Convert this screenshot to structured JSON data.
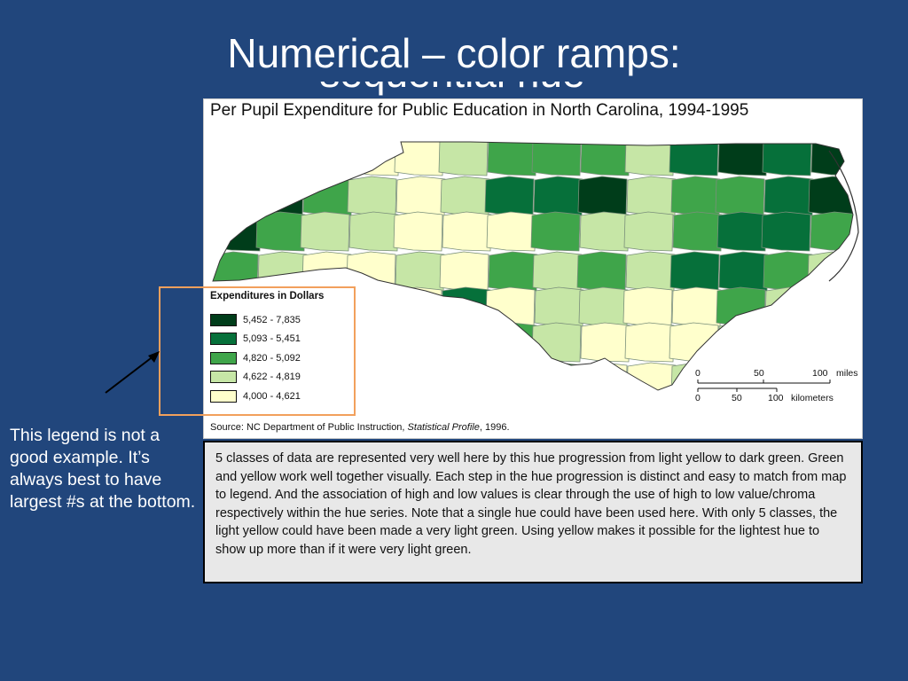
{
  "slide": {
    "title": "Numerical – color ramps:",
    "title_second_line": "sequential hue progression"
  },
  "map": {
    "title": "Per Pupil Expenditure for Public Education in North Carolina, 1994-1995",
    "legend": {
      "title": "Expenditures in Dollars",
      "classes": [
        {
          "label": "5,452 - 7,835",
          "color": "#003d1a"
        },
        {
          "label": "5,093 - 5,451",
          "color": "#06703a"
        },
        {
          "label": "4,820 - 5,092",
          "color": "#3fa54a"
        },
        {
          "label": "4,622 - 4,819",
          "color": "#c6e6a6"
        },
        {
          "label": "4,000 - 4,621",
          "color": "#ffffcc"
        }
      ]
    },
    "scale": {
      "miles_ticks": [
        "0",
        "50",
        "100"
      ],
      "miles_unit": "miles",
      "km_ticks": [
        "0",
        "50",
        "100"
      ],
      "km_unit": "kilometers"
    },
    "source": {
      "prefix": "Source: NC Department of Public Instruction, ",
      "publication": "Statistical Profile",
      "suffix": ", 1996."
    }
  },
  "side_note": "This legend is not a good example. It’s always best to have largest #s at the bottom.",
  "caption": "5 classes of data are represented very well here by this hue progression from light yellow to dark green. Green and yellow work well together visually. Each step in the hue progression is distinct and easy to match from map to legend. And the association of high and low values is clear through the use of high to low value/chroma respectively within the hue series. Note that a single hue could have been used here. With only 5 classes, the light yellow could have been made a very light green. Using yellow makes it possible for the lightest hue to show up more than if it were very light green.",
  "colors": {
    "slide_background": "#21467c",
    "highlight_border": "#f2a05c"
  }
}
